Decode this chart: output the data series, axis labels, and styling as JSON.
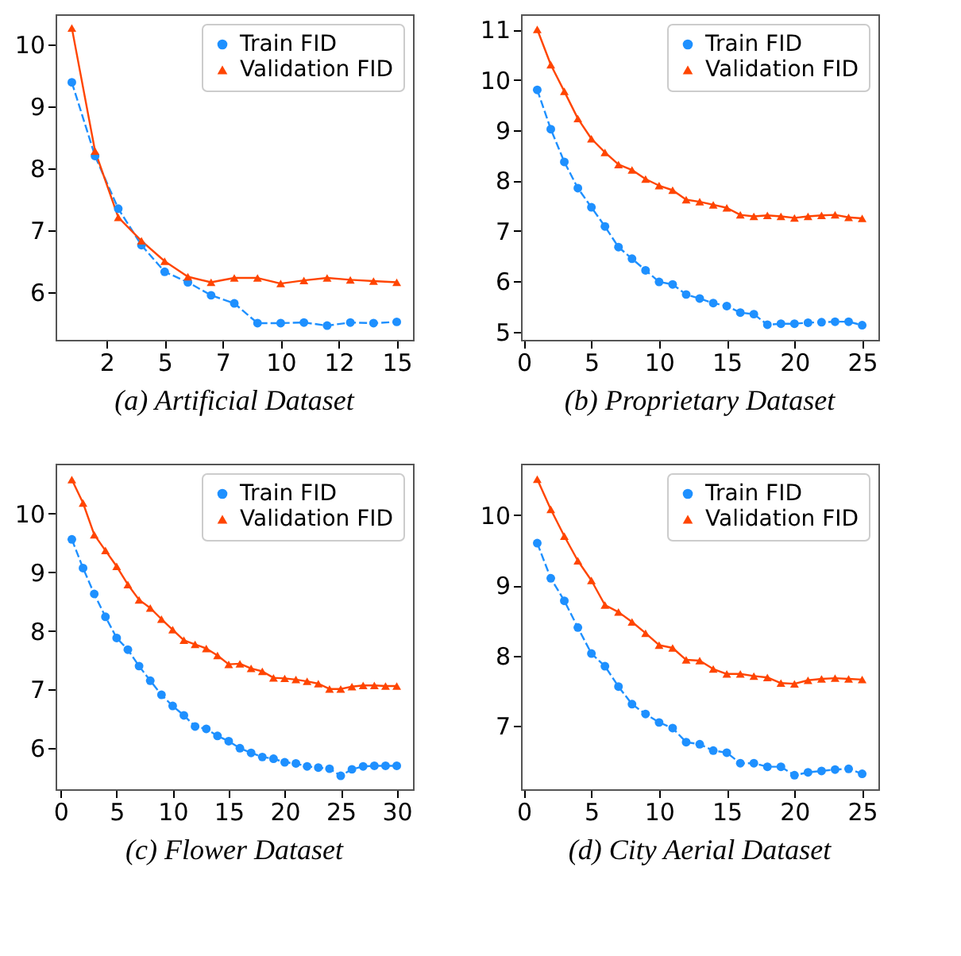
{
  "chart_data": [
    {
      "type": "line",
      "title": "(a) Artificial Dataset",
      "x": [
        1,
        2,
        3,
        4,
        5,
        6,
        7,
        8,
        9,
        10,
        11,
        12,
        13,
        14,
        15
      ],
      "xlim": [
        0.3,
        15.7
      ],
      "xticks": [
        {
          "value": 2.5,
          "label": "2"
        },
        {
          "value": 5,
          "label": "5"
        },
        {
          "value": 7.5,
          "label": "7"
        },
        {
          "value": 10,
          "label": "10"
        },
        {
          "value": 12.5,
          "label": "12"
        },
        {
          "value": 15,
          "label": "15"
        }
      ],
      "ylim": [
        5.23,
        10.49
      ],
      "yticks": [
        6,
        7,
        8,
        9,
        10
      ],
      "legend": "top right",
      "grid": false,
      "series": [
        {
          "name": "Train FID",
          "color": "#1e90ff",
          "marker": "circle",
          "line_style": "dashed",
          "values": [
            9.39,
            8.2,
            7.35,
            6.76,
            6.33,
            6.16,
            5.95,
            5.82,
            5.5,
            5.5,
            5.51,
            5.46,
            5.51,
            5.5,
            5.52
          ]
        },
        {
          "name": "Validation FID",
          "color": "#ff4500",
          "marker": "triangle",
          "line_style": "solid",
          "values": [
            10.27,
            8.28,
            7.21,
            6.83,
            6.5,
            6.25,
            6.16,
            6.23,
            6.23,
            6.14,
            6.19,
            6.23,
            6.2,
            6.18,
            6.16
          ]
        }
      ]
    },
    {
      "type": "line",
      "title": "(b) Proprietary Dataset",
      "x": [
        1,
        2,
        3,
        4,
        5,
        6,
        7,
        8,
        9,
        10,
        11,
        12,
        13,
        14,
        15,
        16,
        17,
        18,
        19,
        20,
        21,
        22,
        23,
        24,
        25
      ],
      "xlim": [
        -0.2,
        26.2
      ],
      "xticks": [
        0,
        5,
        10,
        15,
        20,
        25
      ],
      "ylim": [
        4.84,
        11.3
      ],
      "yticks": [
        5,
        6,
        7,
        8,
        9,
        10,
        11
      ],
      "legend": "top right",
      "grid": false,
      "series": [
        {
          "name": "Train FID",
          "color": "#1e90ff",
          "marker": "circle",
          "line_style": "dashed",
          "values": [
            9.8,
            9.02,
            8.37,
            7.85,
            7.47,
            7.09,
            6.68,
            6.45,
            6.22,
            5.99,
            5.94,
            5.74,
            5.66,
            5.57,
            5.51,
            5.38,
            5.35,
            5.14,
            5.16,
            5.16,
            5.18,
            5.19,
            5.2,
            5.2,
            5.13
          ]
        },
        {
          "name": "Validation FID",
          "color": "#ff4500",
          "marker": "triangle",
          "line_style": "solid",
          "values": [
            11.0,
            10.3,
            9.77,
            9.23,
            8.83,
            8.56,
            8.32,
            8.21,
            8.03,
            7.9,
            7.81,
            7.62,
            7.58,
            7.52,
            7.46,
            7.32,
            7.29,
            7.31,
            7.29,
            7.26,
            7.29,
            7.31,
            7.32,
            7.27,
            7.25
          ]
        }
      ]
    },
    {
      "type": "line",
      "title": "(c) Flower Dataset",
      "x": [
        1,
        2,
        3,
        4,
        5,
        6,
        7,
        8,
        9,
        10,
        11,
        12,
        13,
        14,
        15,
        16,
        17,
        18,
        19,
        20,
        21,
        22,
        23,
        24,
        25,
        26,
        27,
        28,
        29,
        30
      ],
      "xlim": [
        -0.45,
        31.45
      ],
      "xticks": [
        0,
        5,
        10,
        15,
        20,
        25,
        30
      ],
      "ylim": [
        5.3,
        10.85
      ],
      "yticks": [
        6,
        7,
        8,
        9,
        10
      ],
      "legend": "top right",
      "grid": false,
      "series": [
        {
          "name": "Train FID",
          "color": "#1e90ff",
          "marker": "circle",
          "line_style": "dashed",
          "values": [
            9.56,
            9.07,
            8.63,
            8.24,
            7.88,
            7.68,
            7.4,
            7.15,
            6.91,
            6.72,
            6.56,
            6.37,
            6.33,
            6.21,
            6.12,
            6.0,
            5.92,
            5.85,
            5.82,
            5.76,
            5.74,
            5.69,
            5.67,
            5.65,
            5.53,
            5.64,
            5.69,
            5.7,
            5.7,
            5.7
          ]
        },
        {
          "name": "Validation FID",
          "color": "#ff4500",
          "marker": "triangle",
          "line_style": "solid",
          "values": [
            10.58,
            10.18,
            9.64,
            9.37,
            9.1,
            8.79,
            8.53,
            8.39,
            8.2,
            8.02,
            7.84,
            7.77,
            7.7,
            7.58,
            7.43,
            7.44,
            7.36,
            7.31,
            7.2,
            7.19,
            7.17,
            7.14,
            7.1,
            7.01,
            7.01,
            7.05,
            7.07,
            7.07,
            7.06,
            7.06
          ]
        }
      ]
    },
    {
      "type": "line",
      "title": "(d) City Aerial Dataset",
      "x": [
        1,
        2,
        3,
        4,
        5,
        6,
        7,
        8,
        9,
        10,
        11,
        12,
        13,
        14,
        15,
        16,
        17,
        18,
        19,
        20,
        21,
        22,
        23,
        24,
        25
      ],
      "xlim": [
        -0.2,
        26.2
      ],
      "xticks": [
        0,
        5,
        10,
        15,
        20,
        25
      ],
      "ylim": [
        6.1,
        10.73
      ],
      "yticks": [
        7,
        8,
        9,
        10
      ],
      "legend": "top right",
      "grid": false,
      "series": [
        {
          "name": "Train FID",
          "color": "#1e90ff",
          "marker": "circle",
          "line_style": "dashed",
          "values": [
            9.6,
            9.1,
            8.78,
            8.4,
            8.03,
            7.85,
            7.56,
            7.31,
            7.17,
            7.05,
            6.97,
            6.77,
            6.74,
            6.65,
            6.62,
            6.47,
            6.47,
            6.42,
            6.42,
            6.3,
            6.34,
            6.36,
            6.38,
            6.39,
            6.32
          ]
        },
        {
          "name": "Validation FID",
          "color": "#ff4500",
          "marker": "triangle",
          "line_style": "solid",
          "values": [
            10.51,
            10.08,
            9.7,
            9.35,
            9.07,
            8.72,
            8.62,
            8.48,
            8.32,
            8.15,
            8.11,
            7.94,
            7.93,
            7.81,
            7.74,
            7.74,
            7.71,
            7.69,
            7.61,
            7.6,
            7.65,
            7.67,
            7.68,
            7.67,
            7.66
          ]
        }
      ]
    }
  ]
}
